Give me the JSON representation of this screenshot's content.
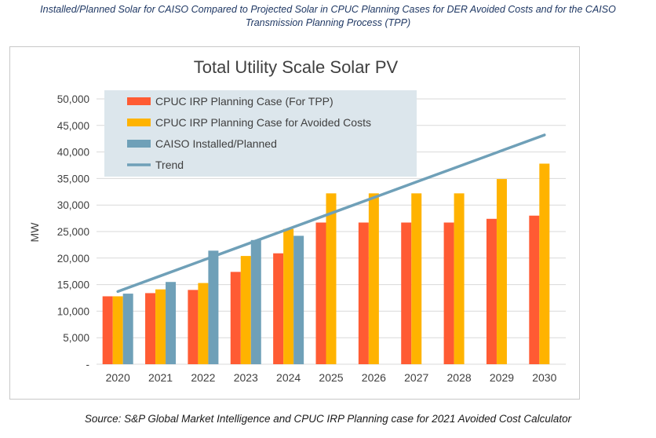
{
  "caption": {
    "line1": "Installed/Planned Solar for CAISO Compared to Projected Solar in CPUC Planning Cases for DER Avoided Costs and for the CAISO",
    "line2": "Transmission Planning Process (TPP)"
  },
  "source": "Source: S&P Global Market Intelligence and CPUC IRP Planning case for 2021 Avoided Cost Calculator",
  "colors": {
    "tpp": "#ff5b33",
    "avoided": "#ffb300",
    "caiso": "#6fa0b8",
    "trend": "#6fa0b8",
    "grid": "#d9d9d9",
    "legend_bg": "#dce6ec"
  },
  "chart_data": {
    "type": "bar",
    "title": "Total Utility Scale Solar PV",
    "xlabel": "",
    "ylabel": "MW",
    "ylim": [
      0,
      50000
    ],
    "ytick_step": 5000,
    "ytick_labels": [
      "-",
      "5,000",
      "10,000",
      "15,000",
      "20,000",
      "25,000",
      "30,000",
      "35,000",
      "40,000",
      "45,000",
      "50,000"
    ],
    "grid": true,
    "legend_position": "top-left",
    "categories": [
      "2020",
      "2021",
      "2022",
      "2023",
      "2024",
      "2025",
      "2026",
      "2027",
      "2028",
      "2029",
      "2030"
    ],
    "series": [
      {
        "name": "CPUC IRP Planning Case (For TPP)",
        "kind": "bar",
        "values": [
          12800,
          13400,
          14000,
          17400,
          20900,
          26700,
          26700,
          26700,
          26700,
          27400,
          28000
        ]
      },
      {
        "name": "CPUC IRP Planning Case for Avoided Costs",
        "kind": "bar",
        "values": [
          12800,
          14100,
          15300,
          20400,
          25500,
          32200,
          32200,
          32200,
          32200,
          34900,
          37800
        ]
      },
      {
        "name": "CAISO Installed/Planned",
        "kind": "bar",
        "values": [
          13300,
          15500,
          21400,
          23400,
          24200,
          null,
          null,
          null,
          null,
          null,
          null
        ]
      },
      {
        "name": "Trend",
        "kind": "line",
        "values": [
          13700,
          16650,
          19600,
          22550,
          25500,
          28450,
          31400,
          34350,
          37300,
          40250,
          43200
        ]
      }
    ]
  }
}
